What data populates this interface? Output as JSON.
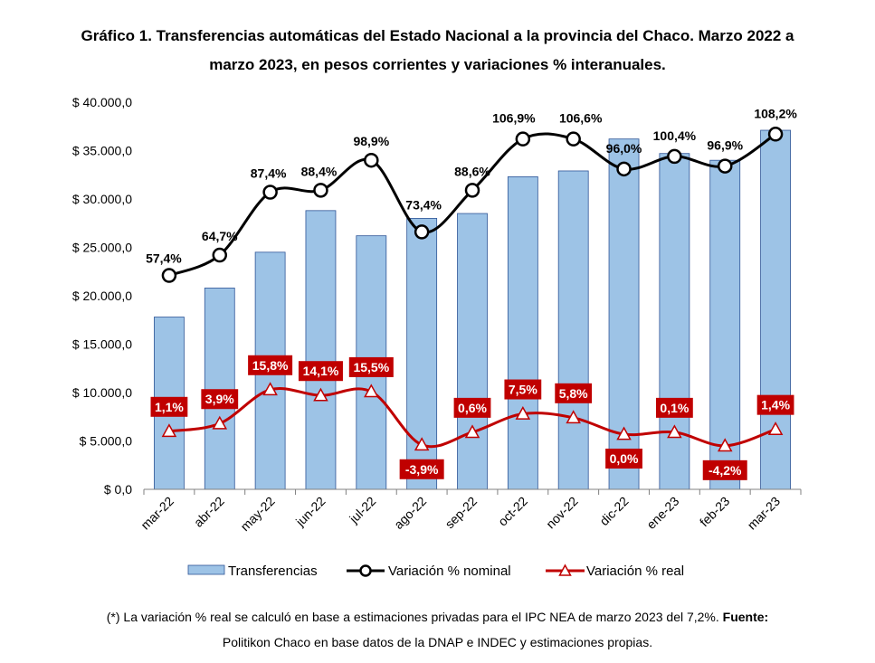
{
  "title": {
    "line1": "Gráfico 1. Transferencias automáticas del Estado Nacional a la provincia del Chaco. Marzo 2022 a",
    "line2": "marzo 2023, en pesos corrientes y variaciones % interanuales."
  },
  "footnote": {
    "line1_text": "(*) La variación % real se calculó en base a estimaciones privadas para el IPC NEA de marzo 2023 del 7,2%.",
    "line1_bold": "Fuente:",
    "line2": "Politikon Chaco en base datos de la DNAP e INDEC y estimaciones propias."
  },
  "colors": {
    "bar_fill": "#9DC3E6",
    "bar_stroke": "#2F5597",
    "nominal_line": "#000000",
    "real_line": "#C00000",
    "real_label_bg": "#C00000",
    "real_label_text": "#FFFFFF",
    "axis": "#808080"
  },
  "chart_data": {
    "type": "bar",
    "categories": [
      "mar-22",
      "abr-22",
      "may-22",
      "jun-22",
      "jul-22",
      "ago-22",
      "sep-22",
      "oct-22",
      "nov-22",
      "dic-22",
      "ene-23",
      "feb-23",
      "mar-23"
    ],
    "ylim": [
      0,
      40000
    ],
    "yticks": [
      0,
      5000,
      10000,
      15000,
      20000,
      25000,
      30000,
      35000,
      40000
    ],
    "ytick_labels": [
      "$ 0,0",
      "$ 5.000,0",
      "$ 10.000,0",
      "$ 15.000,0",
      "$ 20.000,0",
      "$ 25.000,0",
      "$ 30.000,0",
      "$ 35.000,0",
      "$ 40.000,0"
    ],
    "grid": false,
    "legend_position": "bottom",
    "series": [
      {
        "name": "Transferencias",
        "type": "bar",
        "values": [
          17800,
          20800,
          24500,
          28800,
          26200,
          28000,
          28500,
          32300,
          32900,
          36200,
          34700,
          34000,
          37100
        ]
      },
      {
        "name": "Variación % nominal",
        "type": "line",
        "values": [
          22100,
          24200,
          30700,
          30900,
          34000,
          26600,
          30900,
          36200,
          36200,
          33100,
          34400,
          33400,
          36700
        ],
        "labels": [
          "57,4%",
          "64,7%",
          "87,4%",
          "88,4%",
          "98,9%",
          "73,4%",
          "88,6%",
          "106,9%",
          "106,6%",
          "96,0%",
          "100,4%",
          "96,9%",
          "108,2%"
        ]
      },
      {
        "name": "Variación % real",
        "type": "line",
        "values": [
          6000,
          6800,
          10300,
          9700,
          10100,
          4600,
          5900,
          7800,
          7400,
          5700,
          5900,
          4500,
          6200
        ],
        "labels": [
          "1,1%",
          "3,9%",
          "15,8%",
          "14,1%",
          "15,5%",
          "-3,9%",
          "0,6%",
          "7,5%",
          "5,8%",
          "0,0%",
          "0,1%",
          "-4,2%",
          "1,4%"
        ]
      }
    ]
  }
}
